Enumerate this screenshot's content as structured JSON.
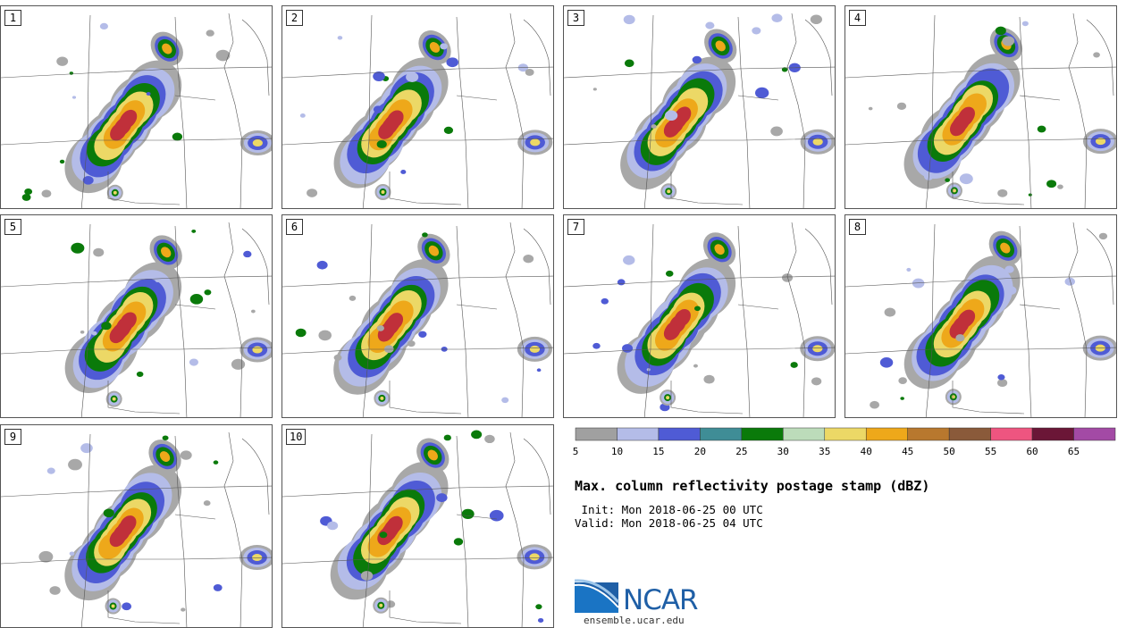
{
  "panels": [
    {
      "label": "1"
    },
    {
      "label": "2"
    },
    {
      "label": "3"
    },
    {
      "label": "4"
    },
    {
      "label": "5"
    },
    {
      "label": "6"
    },
    {
      "label": "7"
    },
    {
      "label": "8"
    },
    {
      "label": "9"
    },
    {
      "label": "10"
    }
  ],
  "colorbar": {
    "colors": [
      "#a0a0a0",
      "#b4bce8",
      "#4f5bd5",
      "#3f8d96",
      "#0a7a0a",
      "#bcdcba",
      "#ecd866",
      "#eea81a",
      "#b8782e",
      "#8a5a3a",
      "#ee5580",
      "#6b1637",
      "#a34aa5"
    ],
    "ticks": [
      "5",
      "10",
      "15",
      "20",
      "25",
      "30",
      "35",
      "40",
      "45",
      "50",
      "55",
      "60",
      "65"
    ]
  },
  "title": "Max. column reflectivity postage stamp (dBZ)",
  "init": " Init: Mon 2018-06-25 00 UTC",
  "valid": "Valid: Mon 2018-06-25 04 UTC",
  "logo": {
    "word": "NCAR",
    "url": "ensemble.ucar.edu"
  },
  "storm_colors": {
    "light": "#a8a8a8",
    "lav": "#b4bce8",
    "blue": "#4f5bd5",
    "green": "#0a7a0a",
    "yellow": "#ecd866",
    "orange": "#eea81a",
    "red": "#c0303a"
  }
}
